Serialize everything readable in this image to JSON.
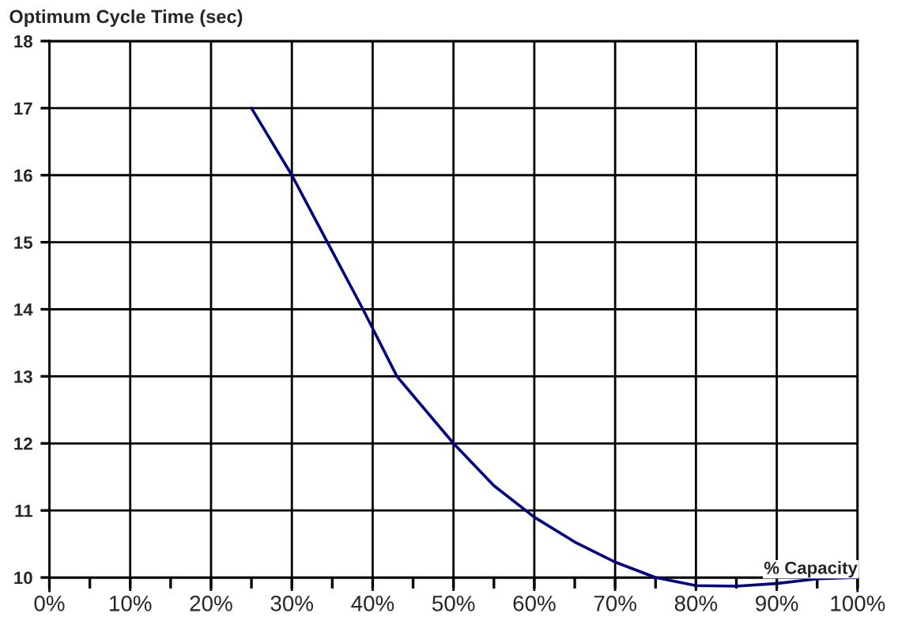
{
  "chart_data": {
    "type": "line",
    "title": "Optimum Cycle Time (sec)",
    "xlabel": "% Capacity",
    "x": [
      25,
      30,
      34.4,
      38.8,
      43,
      50,
      55,
      60,
      65,
      70,
      75,
      80,
      85,
      90,
      95,
      100
    ],
    "series": [
      {
        "color": "#000080",
        "values": [
          17,
          16,
          15,
          14,
          13,
          12,
          11.37,
          10.9,
          10.53,
          10.23,
          10.0,
          9.88,
          9.87,
          9.91,
          9.98,
          10.0
        ]
      }
    ],
    "xlim": [
      0,
      100
    ],
    "xticks": [
      {
        "value": 0,
        "label": "0%"
      },
      {
        "value": 5,
        "label": null
      },
      {
        "value": 10,
        "label": "10%"
      },
      {
        "value": 15,
        "label": null
      },
      {
        "value": 20,
        "label": "20%"
      },
      {
        "value": 25,
        "label": null
      },
      {
        "value": 30,
        "label": "30%"
      },
      {
        "value": 35,
        "label": null
      },
      {
        "value": 40,
        "label": "40%"
      },
      {
        "value": 45,
        "label": null
      },
      {
        "value": 50,
        "label": "50%"
      },
      {
        "value": 55,
        "label": null
      },
      {
        "value": 60,
        "label": "60%"
      },
      {
        "value": 65,
        "label": null
      },
      {
        "value": 70,
        "label": "70%"
      },
      {
        "value": 75,
        "label": null
      },
      {
        "value": 80,
        "label": "80%"
      },
      {
        "value": 85,
        "label": null
      },
      {
        "value": 90,
        "label": "90%"
      },
      {
        "value": 95,
        "label": null
      },
      {
        "value": 100,
        "label": "100%"
      }
    ],
    "ylim": [
      9.8,
      18
    ],
    "yticks": [
      10,
      11,
      12,
      13,
      14,
      15,
      16,
      17,
      18
    ],
    "grid": true,
    "marker": "none",
    "line_style": "solid"
  }
}
